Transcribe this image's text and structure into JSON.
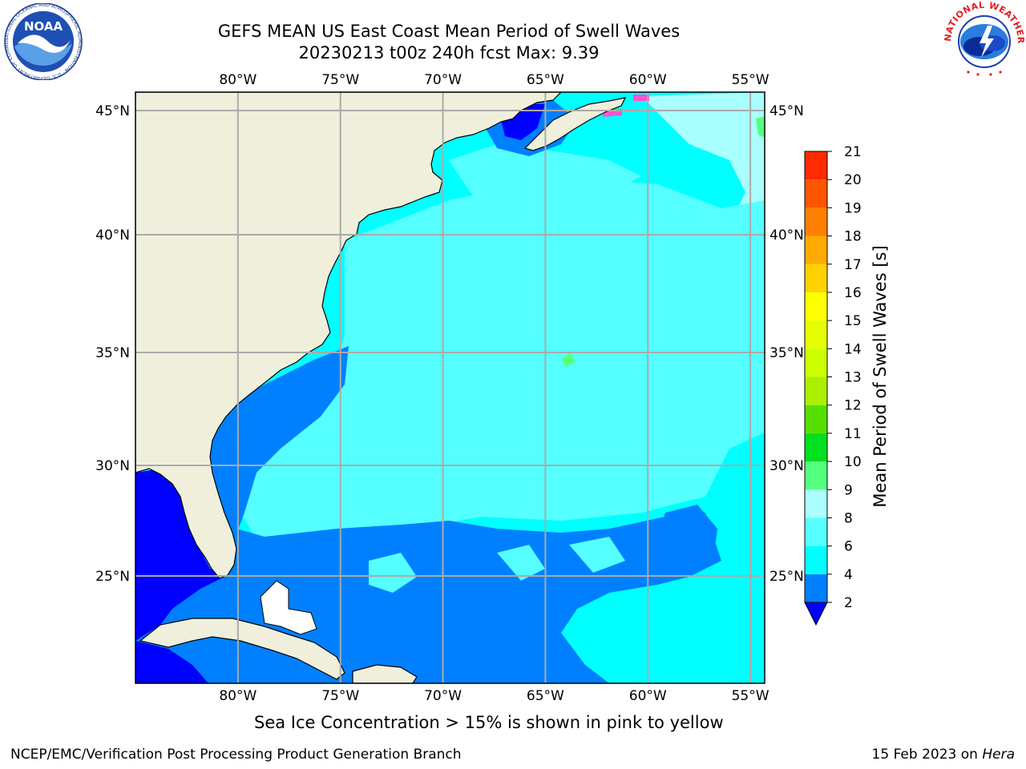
{
  "titles": {
    "line1": "GEFS MEAN US East Coast Mean Period of Swell Waves",
    "line2": "20230213 t00z 240h fcst   Max: 9.39"
  },
  "map": {
    "lon_labels": [
      "80°W",
      "75°W",
      "70°W",
      "65°W",
      "60°W",
      "55°W"
    ],
    "lat_labels": [
      "45°N",
      "40°N",
      "35°N",
      "30°N",
      "25°N"
    ],
    "lon_values": [
      -80,
      -75,
      -70,
      -65,
      -60,
      -55
    ],
    "lat_values": [
      45,
      40,
      35,
      30,
      25
    ],
    "extent": {
      "lon_min": -85,
      "lon_max": -54.3,
      "lat_min": 20.5,
      "lat_max": 46
    },
    "land_color": "#efefdc",
    "grid_color": "#aaaaaa"
  },
  "colorbar": {
    "title": "Mean Period of Swell Waves [s]",
    "ticks": [
      "2",
      "4",
      "6",
      "8",
      "9",
      "10",
      "11",
      "12",
      "13",
      "14",
      "15",
      "16",
      "17",
      "18",
      "19",
      "20",
      "21"
    ],
    "colors": [
      "#0080ff",
      "#00ffff",
      "#55ffff",
      "#aaffff",
      "#55ff80",
      "#00e020",
      "#55e000",
      "#aaf000",
      "#ccff00",
      "#e6ff00",
      "#ffff00",
      "#ffd200",
      "#ffaa00",
      "#ff8000",
      "#ff5500",
      "#ff2a00",
      "#ff0000"
    ],
    "under_color": "#0000ff"
  },
  "note": "Sea Ice Concentration > 15% is shown in pink to yellow",
  "footer": {
    "left": "NCEP/EMC/Verification Post Processing Product Generation Branch",
    "right_prefix": "15 Feb 2023 on ",
    "right_host": "Hera"
  },
  "logos": {
    "noaa_text": "NOAA",
    "noaa_ring": "NATIONAL OCEANIC AND ATMOSPHERIC ADMINISTRATION · U.S. DEPARTMENT OF COMMERCE",
    "nws_ring": "NATIONAL WEATHER SERVICE"
  }
}
